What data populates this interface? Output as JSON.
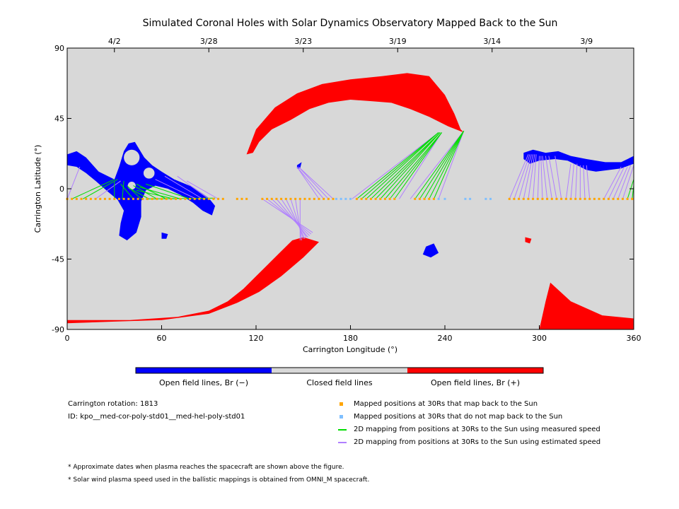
{
  "title": "Simulated Coronal Holes with Solar Dynamics Observatory Mapped Back to the Sun",
  "colors": {
    "background": "#d8d8d8",
    "open_negative": "#0000ff",
    "open_positive": "#ff0000",
    "closed": "#d8d8d8",
    "mapped_back": "#ffa500",
    "not_mapped": "#7fbfff",
    "measured_line": "#00dd00",
    "estimated_line": "#b07fff"
  },
  "colorbar": {
    "neg_label": "Open field lines, Br (−)",
    "closed_label": "Closed field lines",
    "pos_label": "Open field lines, Br (+)"
  },
  "info": {
    "rotation": "Carrington rotation: 1813",
    "id": "ID: kpo__med-cor-poly-std01__med-hel-poly-std01"
  },
  "legend": {
    "mapped": "Mapped positions at 30Rs that map back to the Sun",
    "not_mapped": "Mapped positions at 30Rs that do not map back to the Sun",
    "measured": "2D mapping from positions at 30Rs to the Sun using measured speed",
    "estimated": "2D mapping from positions at 30Rs to the Sun using estimated speed"
  },
  "notes": {
    "n1": "* Approximate dates when plasma reaches the spacecraft are shown above the figure.",
    "n2": "* Solar wind plasma speed used in the ballistic mappings is obtained from OMNI_M spacecraft."
  },
  "chart_data": {
    "type": "scatter",
    "xlabel": "Carrington Longitude (°)",
    "ylabel": "Carrington Latitude (°)",
    "xlim": [
      0,
      360
    ],
    "ylim": [
      -90,
      90
    ],
    "x_ticks": [
      0,
      60,
      120,
      180,
      240,
      300,
      360
    ],
    "y_ticks": [
      90,
      45,
      0,
      -45,
      -90
    ],
    "top_axis_dates": [
      {
        "label": "4/2",
        "lon": 30
      },
      {
        "label": "3/28",
        "lon": 90
      },
      {
        "label": "3/23",
        "lon": 150
      },
      {
        "label": "3/19",
        "lon": 210
      },
      {
        "label": "3/14",
        "lon": 270
      },
      {
        "label": "3/9",
        "lon": 330
      }
    ],
    "regions": [
      {
        "name": "open-neg-west-edge",
        "polarity": "-",
        "points": [
          [
            0,
            22
          ],
          [
            6,
            24
          ],
          [
            12,
            20
          ],
          [
            20,
            11
          ],
          [
            30,
            6
          ],
          [
            33,
            14
          ],
          [
            36,
            24
          ],
          [
            39,
            29
          ],
          [
            43,
            30
          ],
          [
            46,
            25
          ],
          [
            49,
            20
          ],
          [
            54,
            15
          ],
          [
            60,
            11
          ],
          [
            68,
            6
          ],
          [
            80,
            1
          ],
          [
            90,
            -6
          ],
          [
            94,
            -11
          ],
          [
            92,
            -17
          ],
          [
            86,
            -14
          ],
          [
            80,
            -9
          ],
          [
            72,
            -4
          ],
          [
            64,
            0
          ],
          [
            56,
            2
          ],
          [
            50,
            -1
          ],
          [
            47,
            -8
          ],
          [
            47,
            -18
          ],
          [
            44,
            -28
          ],
          [
            38,
            -33
          ],
          [
            33,
            -30
          ],
          [
            34,
            -22
          ],
          [
            36,
            -14
          ],
          [
            32,
            -7
          ],
          [
            26,
            -2
          ],
          [
            18,
            5
          ],
          [
            12,
            10
          ],
          [
            6,
            14
          ],
          [
            0,
            15
          ]
        ]
      },
      {
        "name": "open-neg-east-edge",
        "polarity": "-",
        "points": [
          [
            290,
            23
          ],
          [
            296,
            25
          ],
          [
            304,
            23
          ],
          [
            312,
            24
          ],
          [
            320,
            21
          ],
          [
            330,
            19
          ],
          [
            342,
            17
          ],
          [
            352,
            17
          ],
          [
            360,
            21
          ],
          [
            360,
            16
          ],
          [
            352,
            13
          ],
          [
            344,
            12
          ],
          [
            336,
            11
          ],
          [
            330,
            12
          ],
          [
            324,
            15
          ],
          [
            318,
            18
          ],
          [
            310,
            19
          ],
          [
            300,
            18
          ],
          [
            294,
            16
          ],
          [
            290,
            19
          ]
        ]
      },
      {
        "name": "open-neg-islet-1",
        "polarity": "-",
        "points": [
          [
            146,
            15
          ],
          [
            149,
            17
          ],
          [
            148,
            13
          ],
          [
            146,
            13
          ]
        ]
      },
      {
        "name": "open-neg-islet-2",
        "polarity": "-",
        "points": [
          [
            228,
            -37
          ],
          [
            233,
            -35
          ],
          [
            236,
            -41
          ],
          [
            231,
            -44
          ],
          [
            226,
            -42
          ]
        ]
      },
      {
        "name": "open-neg-islet-3",
        "polarity": "-",
        "points": [
          [
            60,
            -28
          ],
          [
            64,
            -29
          ],
          [
            63,
            -32
          ],
          [
            60,
            -32
          ]
        ]
      },
      {
        "name": "open-pos-north",
        "polarity": "+",
        "points": [
          [
            114,
            22
          ],
          [
            120,
            38
          ],
          [
            132,
            52
          ],
          [
            146,
            61
          ],
          [
            162,
            67
          ],
          [
            180,
            70
          ],
          [
            200,
            72
          ],
          [
            216,
            74
          ],
          [
            230,
            72
          ],
          [
            240,
            60
          ],
          [
            246,
            48
          ],
          [
            250,
            38
          ],
          [
            252,
            36
          ],
          [
            242,
            40
          ],
          [
            230,
            46
          ],
          [
            218,
            51
          ],
          [
            206,
            55
          ],
          [
            194,
            56
          ],
          [
            180,
            57
          ],
          [
            166,
            55
          ],
          [
            154,
            51
          ],
          [
            142,
            44
          ],
          [
            130,
            38
          ],
          [
            122,
            30
          ],
          [
            118,
            23
          ]
        ]
      },
      {
        "name": "open-pos-south",
        "polarity": "+",
        "points": [
          [
            0,
            -86
          ],
          [
            30,
            -85
          ],
          [
            60,
            -84
          ],
          [
            90,
            -80
          ],
          [
            108,
            -73
          ],
          [
            122,
            -66
          ],
          [
            136,
            -56
          ],
          [
            150,
            -44
          ],
          [
            160,
            -34
          ],
          [
            150,
            -31
          ],
          [
            143,
            -33
          ],
          [
            136,
            -40
          ],
          [
            128,
            -48
          ],
          [
            120,
            -56
          ],
          [
            112,
            -64
          ],
          [
            102,
            -72
          ],
          [
            90,
            -78
          ],
          [
            70,
            -82
          ],
          [
            40,
            -84
          ],
          [
            0,
            -84
          ]
        ]
      },
      {
        "name": "open-pos-south-east",
        "polarity": "+",
        "points": [
          [
            307,
            -60
          ],
          [
            320,
            -72
          ],
          [
            340,
            -81
          ],
          [
            360,
            -83
          ],
          [
            360,
            -90
          ],
          [
            300,
            -90
          ],
          [
            304,
            -72
          ]
        ]
      },
      {
        "name": "open-pos-islet",
        "polarity": "+",
        "points": [
          [
            291,
            -31
          ],
          [
            295,
            -32
          ],
          [
            294,
            -35
          ],
          [
            291,
            -34
          ]
        ]
      }
    ],
    "holes_in_neg_region": [
      {
        "lon": 41,
        "lat": 20,
        "r": 5
      },
      {
        "lon": 52,
        "lat": 10,
        "r": 3.5
      },
      {
        "lon": 41,
        "lat": 2,
        "r": 2.5
      }
    ],
    "mapped_lon": [
      0,
      3,
      6,
      9,
      12,
      15,
      18,
      21,
      24,
      27,
      30,
      33,
      36,
      39,
      42,
      45,
      48,
      51,
      54,
      57,
      60,
      63,
      66,
      69,
      72,
      75,
      78,
      81,
      84,
      87,
      90,
      93,
      96,
      99,
      108,
      111,
      114,
      124,
      127,
      130,
      133,
      136,
      139,
      142,
      145,
      148,
      151,
      154,
      157,
      160,
      163,
      166,
      169,
      184,
      187,
      190,
      193,
      196,
      199,
      202,
      205,
      208,
      221,
      224,
      227,
      230,
      233,
      281,
      284,
      287,
      290,
      293,
      296,
      299,
      302,
      305,
      308,
      311,
      314,
      317,
      320,
      323,
      326,
      329,
      332,
      335,
      338,
      341,
      344,
      347,
      350,
      353,
      356,
      359
    ],
    "not_mapped_lon": [
      171,
      174,
      177,
      180,
      236,
      240,
      253,
      256,
      266,
      269
    ],
    "mapped_lat": -6.5,
    "mappings": [
      {
        "from": 30,
        "to_lon": 30,
        "to_lat": 5,
        "kind": "measured"
      },
      {
        "from": 35,
        "to_lon": 36,
        "to_lat": 5,
        "kind": "measured"
      },
      {
        "from": 42,
        "to_lon": 34,
        "to_lat": 3,
        "kind": "measured"
      },
      {
        "from": 47,
        "to_lon": 38,
        "to_lat": 2,
        "kind": "measured"
      },
      {
        "from": 52,
        "to_lon": 40,
        "to_lat": 0,
        "kind": "measured"
      },
      {
        "from": 57,
        "to_lon": 42,
        "to_lat": 2,
        "kind": "measured"
      },
      {
        "from": 63,
        "to_lon": 44,
        "to_lat": 3,
        "kind": "measured"
      },
      {
        "from": 68,
        "to_lon": 44,
        "to_lat": -1,
        "kind": "measured"
      },
      {
        "from": 72,
        "to_lon": 46,
        "to_lat": 1,
        "kind": "measured"
      },
      {
        "from": 78,
        "to_lon": 50,
        "to_lat": 3,
        "kind": "measured"
      },
      {
        "from": 3,
        "to_lon": 30,
        "to_lat": 6,
        "kind": "measured"
      },
      {
        "from": 10,
        "to_lon": 32,
        "to_lat": 6,
        "kind": "measured"
      },
      {
        "from": 50,
        "to_lon": 94,
        "to_lat": -6,
        "kind": "measured"
      },
      {
        "from": 0,
        "to_lon": 8,
        "to_lat": 14,
        "kind": "estimated"
      },
      {
        "from": 18,
        "to_lon": 34,
        "to_lat": 5,
        "kind": "estimated"
      },
      {
        "from": 82,
        "to_lon": 56,
        "to_lat": 6,
        "kind": "estimated"
      },
      {
        "from": 86,
        "to_lon": 62,
        "to_lat": 8,
        "kind": "estimated"
      },
      {
        "from": 90,
        "to_lon": 70,
        "to_lat": 8,
        "kind": "estimated"
      },
      {
        "from": 96,
        "to_lon": 76,
        "to_lat": 5,
        "kind": "estimated"
      },
      {
        "from": 160,
        "to_lon": 146,
        "to_lat": 14,
        "kind": "estimated"
      },
      {
        "from": 163,
        "to_lon": 146,
        "to_lat": 14,
        "kind": "estimated"
      },
      {
        "from": 166,
        "to_lon": 147,
        "to_lat": 14,
        "kind": "estimated"
      },
      {
        "from": 169,
        "to_lon": 147,
        "to_lat": 14,
        "kind": "estimated"
      },
      {
        "from": 124,
        "to_lon": 156,
        "to_lat": -28,
        "kind": "estimated"
      },
      {
        "from": 127,
        "to_lon": 155,
        "to_lat": -29,
        "kind": "estimated"
      },
      {
        "from": 130,
        "to_lon": 154,
        "to_lat": -30,
        "kind": "estimated"
      },
      {
        "from": 133,
        "to_lon": 153,
        "to_lat": -31,
        "kind": "estimated"
      },
      {
        "from": 136,
        "to_lon": 152,
        "to_lat": -31,
        "kind": "estimated"
      },
      {
        "from": 139,
        "to_lon": 151,
        "to_lat": -32,
        "kind": "estimated"
      },
      {
        "from": 142,
        "to_lon": 150,
        "to_lat": -32,
        "kind": "estimated"
      },
      {
        "from": 145,
        "to_lon": 149,
        "to_lat": -33,
        "kind": "estimated"
      },
      {
        "from": 148,
        "to_lon": 148,
        "to_lat": -33,
        "kind": "estimated"
      },
      {
        "from": 184,
        "to_lon": 236,
        "to_lat": 36,
        "kind": "measured"
      },
      {
        "from": 187,
        "to_lon": 236,
        "to_lat": 36,
        "kind": "measured"
      },
      {
        "from": 190,
        "to_lon": 236,
        "to_lat": 36,
        "kind": "measured"
      },
      {
        "from": 193,
        "to_lon": 237,
        "to_lat": 36,
        "kind": "measured"
      },
      {
        "from": 196,
        "to_lon": 237,
        "to_lat": 36,
        "kind": "measured"
      },
      {
        "from": 199,
        "to_lon": 237,
        "to_lat": 36,
        "kind": "measured"
      },
      {
        "from": 202,
        "to_lon": 238,
        "to_lat": 36,
        "kind": "measured"
      },
      {
        "from": 205,
        "to_lon": 238,
        "to_lat": 36,
        "kind": "measured"
      },
      {
        "from": 208,
        "to_lon": 238,
        "to_lat": 36,
        "kind": "measured"
      },
      {
        "from": 221,
        "to_lon": 252,
        "to_lat": 37,
        "kind": "measured"
      },
      {
        "from": 224,
        "to_lon": 252,
        "to_lat": 37,
        "kind": "measured"
      },
      {
        "from": 227,
        "to_lon": 252,
        "to_lat": 37,
        "kind": "measured"
      },
      {
        "from": 230,
        "to_lon": 252,
        "to_lat": 37,
        "kind": "measured"
      },
      {
        "from": 233,
        "to_lon": 252,
        "to_lat": 37,
        "kind": "measured"
      },
      {
        "from": 181,
        "to_lon": 236,
        "to_lat": 36,
        "kind": "estimated"
      },
      {
        "from": 211,
        "to_lon": 238,
        "to_lat": 36,
        "kind": "estimated"
      },
      {
        "from": 218,
        "to_lon": 252,
        "to_lat": 37,
        "kind": "estimated"
      },
      {
        "from": 236,
        "to_lon": 252,
        "to_lat": 37,
        "kind": "estimated"
      },
      {
        "from": 281,
        "to_lon": 293,
        "to_lat": 22,
        "kind": "estimated"
      },
      {
        "from": 284,
        "to_lon": 294,
        "to_lat": 22,
        "kind": "estimated"
      },
      {
        "from": 287,
        "to_lon": 295,
        "to_lat": 22,
        "kind": "estimated"
      },
      {
        "from": 290,
        "to_lon": 296,
        "to_lat": 22,
        "kind": "estimated"
      },
      {
        "from": 293,
        "to_lon": 297,
        "to_lat": 22,
        "kind": "estimated"
      },
      {
        "from": 296,
        "to_lon": 298,
        "to_lat": 22,
        "kind": "estimated"
      },
      {
        "from": 299,
        "to_lon": 300,
        "to_lat": 21,
        "kind": "estimated"
      },
      {
        "from": 302,
        "to_lon": 301,
        "to_lat": 21,
        "kind": "estimated"
      },
      {
        "from": 305,
        "to_lon": 302,
        "to_lat": 21,
        "kind": "estimated"
      },
      {
        "from": 308,
        "to_lon": 304,
        "to_lat": 21,
        "kind": "estimated"
      },
      {
        "from": 311,
        "to_lon": 306,
        "to_lat": 21,
        "kind": "estimated"
      },
      {
        "from": 314,
        "to_lon": 310,
        "to_lat": 21,
        "kind": "estimated"
      },
      {
        "from": 317,
        "to_lon": 320,
        "to_lat": 16,
        "kind": "estimated"
      },
      {
        "from": 320,
        "to_lon": 322,
        "to_lat": 16,
        "kind": "estimated"
      },
      {
        "from": 323,
        "to_lon": 324,
        "to_lat": 16,
        "kind": "estimated"
      },
      {
        "from": 326,
        "to_lon": 326,
        "to_lat": 15,
        "kind": "estimated"
      },
      {
        "from": 329,
        "to_lon": 328,
        "to_lat": 15,
        "kind": "estimated"
      },
      {
        "from": 332,
        "to_lon": 330,
        "to_lat": 15,
        "kind": "estimated"
      },
      {
        "from": 341,
        "to_lon": 352,
        "to_lat": 14,
        "kind": "estimated"
      },
      {
        "from": 344,
        "to_lon": 354,
        "to_lat": 14,
        "kind": "estimated"
      },
      {
        "from": 347,
        "to_lon": 356,
        "to_lat": 14,
        "kind": "estimated"
      },
      {
        "from": 350,
        "to_lon": 358,
        "to_lat": 15,
        "kind": "estimated"
      },
      {
        "from": 353,
        "to_lon": 360,
        "to_lat": 15,
        "kind": "estimated"
      },
      {
        "from": 356,
        "to_lon": 360,
        "to_lat": 6,
        "kind": "measured"
      },
      {
        "from": 359,
        "to_lon": 360,
        "to_lat": 2,
        "kind": "measured"
      }
    ]
  }
}
